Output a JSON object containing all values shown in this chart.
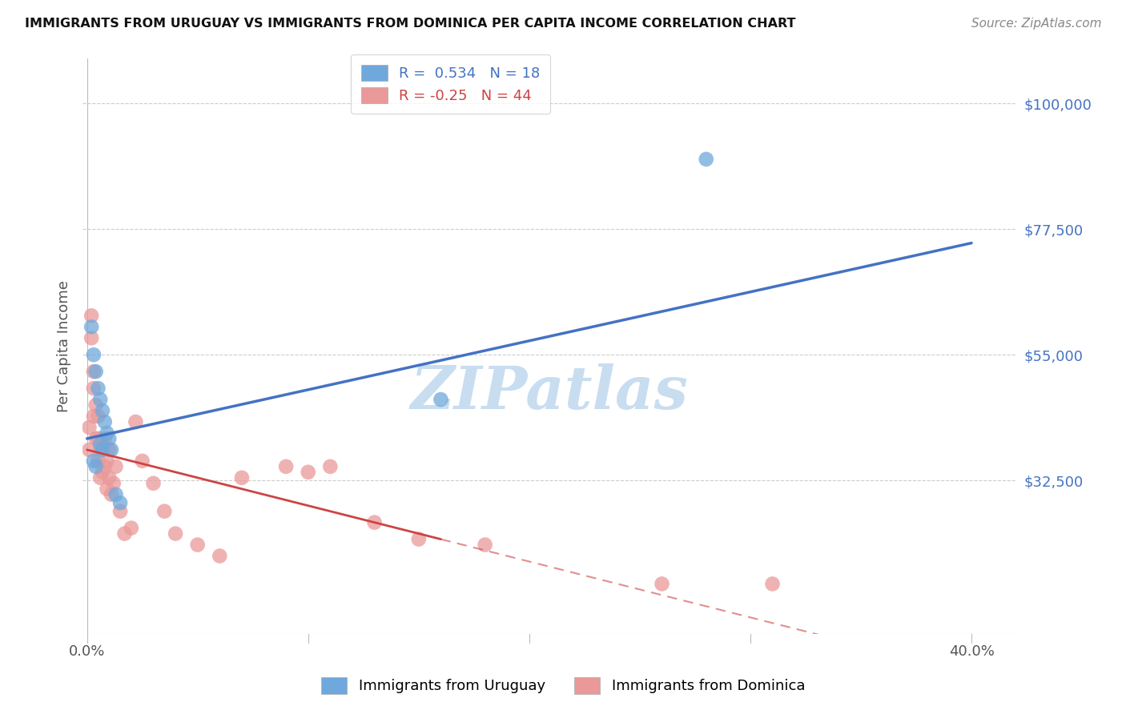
{
  "title": "IMMIGRANTS FROM URUGUAY VS IMMIGRANTS FROM DOMINICA PER CAPITA INCOME CORRELATION CHART",
  "source": "Source: ZipAtlas.com",
  "ylabel": "Per Capita Income",
  "ytick_labels": [
    "$100,000",
    "$77,500",
    "$55,000",
    "$32,500"
  ],
  "ytick_values": [
    100000,
    77500,
    55000,
    32500
  ],
  "ymin": 5000,
  "ymax": 108000,
  "xmin": -0.002,
  "xmax": 0.42,
  "xtick_values": [
    0.0,
    0.1,
    0.2,
    0.3,
    0.4
  ],
  "xtick_labels": [
    "0.0%",
    "",
    "",
    "",
    "40.0%"
  ],
  "uruguay_R": 0.534,
  "uruguay_N": 18,
  "dominica_R": -0.25,
  "dominica_N": 44,
  "uruguay_color": "#6fa8dc",
  "dominica_color": "#ea9999",
  "uruguay_line_color": "#4472c4",
  "dominica_line_color": "#cc4444",
  "uruguay_x": [
    0.002,
    0.003,
    0.004,
    0.005,
    0.006,
    0.007,
    0.008,
    0.009,
    0.01,
    0.011,
    0.013,
    0.015,
    0.16,
    0.28,
    0.007,
    0.003,
    0.004,
    0.006
  ],
  "uruguay_y": [
    60000,
    55000,
    52000,
    49000,
    47000,
    45000,
    43000,
    41000,
    40000,
    38000,
    30000,
    28500,
    47000,
    90000,
    38000,
    36000,
    35000,
    39000
  ],
  "dominica_x": [
    0.001,
    0.001,
    0.002,
    0.002,
    0.003,
    0.003,
    0.003,
    0.004,
    0.004,
    0.005,
    0.005,
    0.005,
    0.006,
    0.006,
    0.007,
    0.007,
    0.008,
    0.008,
    0.009,
    0.009,
    0.01,
    0.01,
    0.011,
    0.012,
    0.013,
    0.015,
    0.017,
    0.02,
    0.022,
    0.025,
    0.03,
    0.035,
    0.04,
    0.05,
    0.06,
    0.07,
    0.09,
    0.1,
    0.11,
    0.13,
    0.15,
    0.18,
    0.26,
    0.31
  ],
  "dominica_y": [
    42000,
    38000,
    62000,
    58000,
    52000,
    49000,
    44000,
    46000,
    40000,
    44000,
    40000,
    36000,
    38000,
    33000,
    39000,
    34000,
    40000,
    35000,
    36000,
    31000,
    38000,
    33000,
    30000,
    32000,
    35000,
    27000,
    23000,
    24000,
    43000,
    36000,
    32000,
    27000,
    23000,
    21000,
    19000,
    33000,
    35000,
    34000,
    35000,
    25000,
    22000,
    21000,
    14000,
    14000
  ],
  "watermark": "ZIPatlas",
  "watermark_color": "#c8ddf0",
  "background_color": "#ffffff",
  "grid_color": "#cccccc"
}
